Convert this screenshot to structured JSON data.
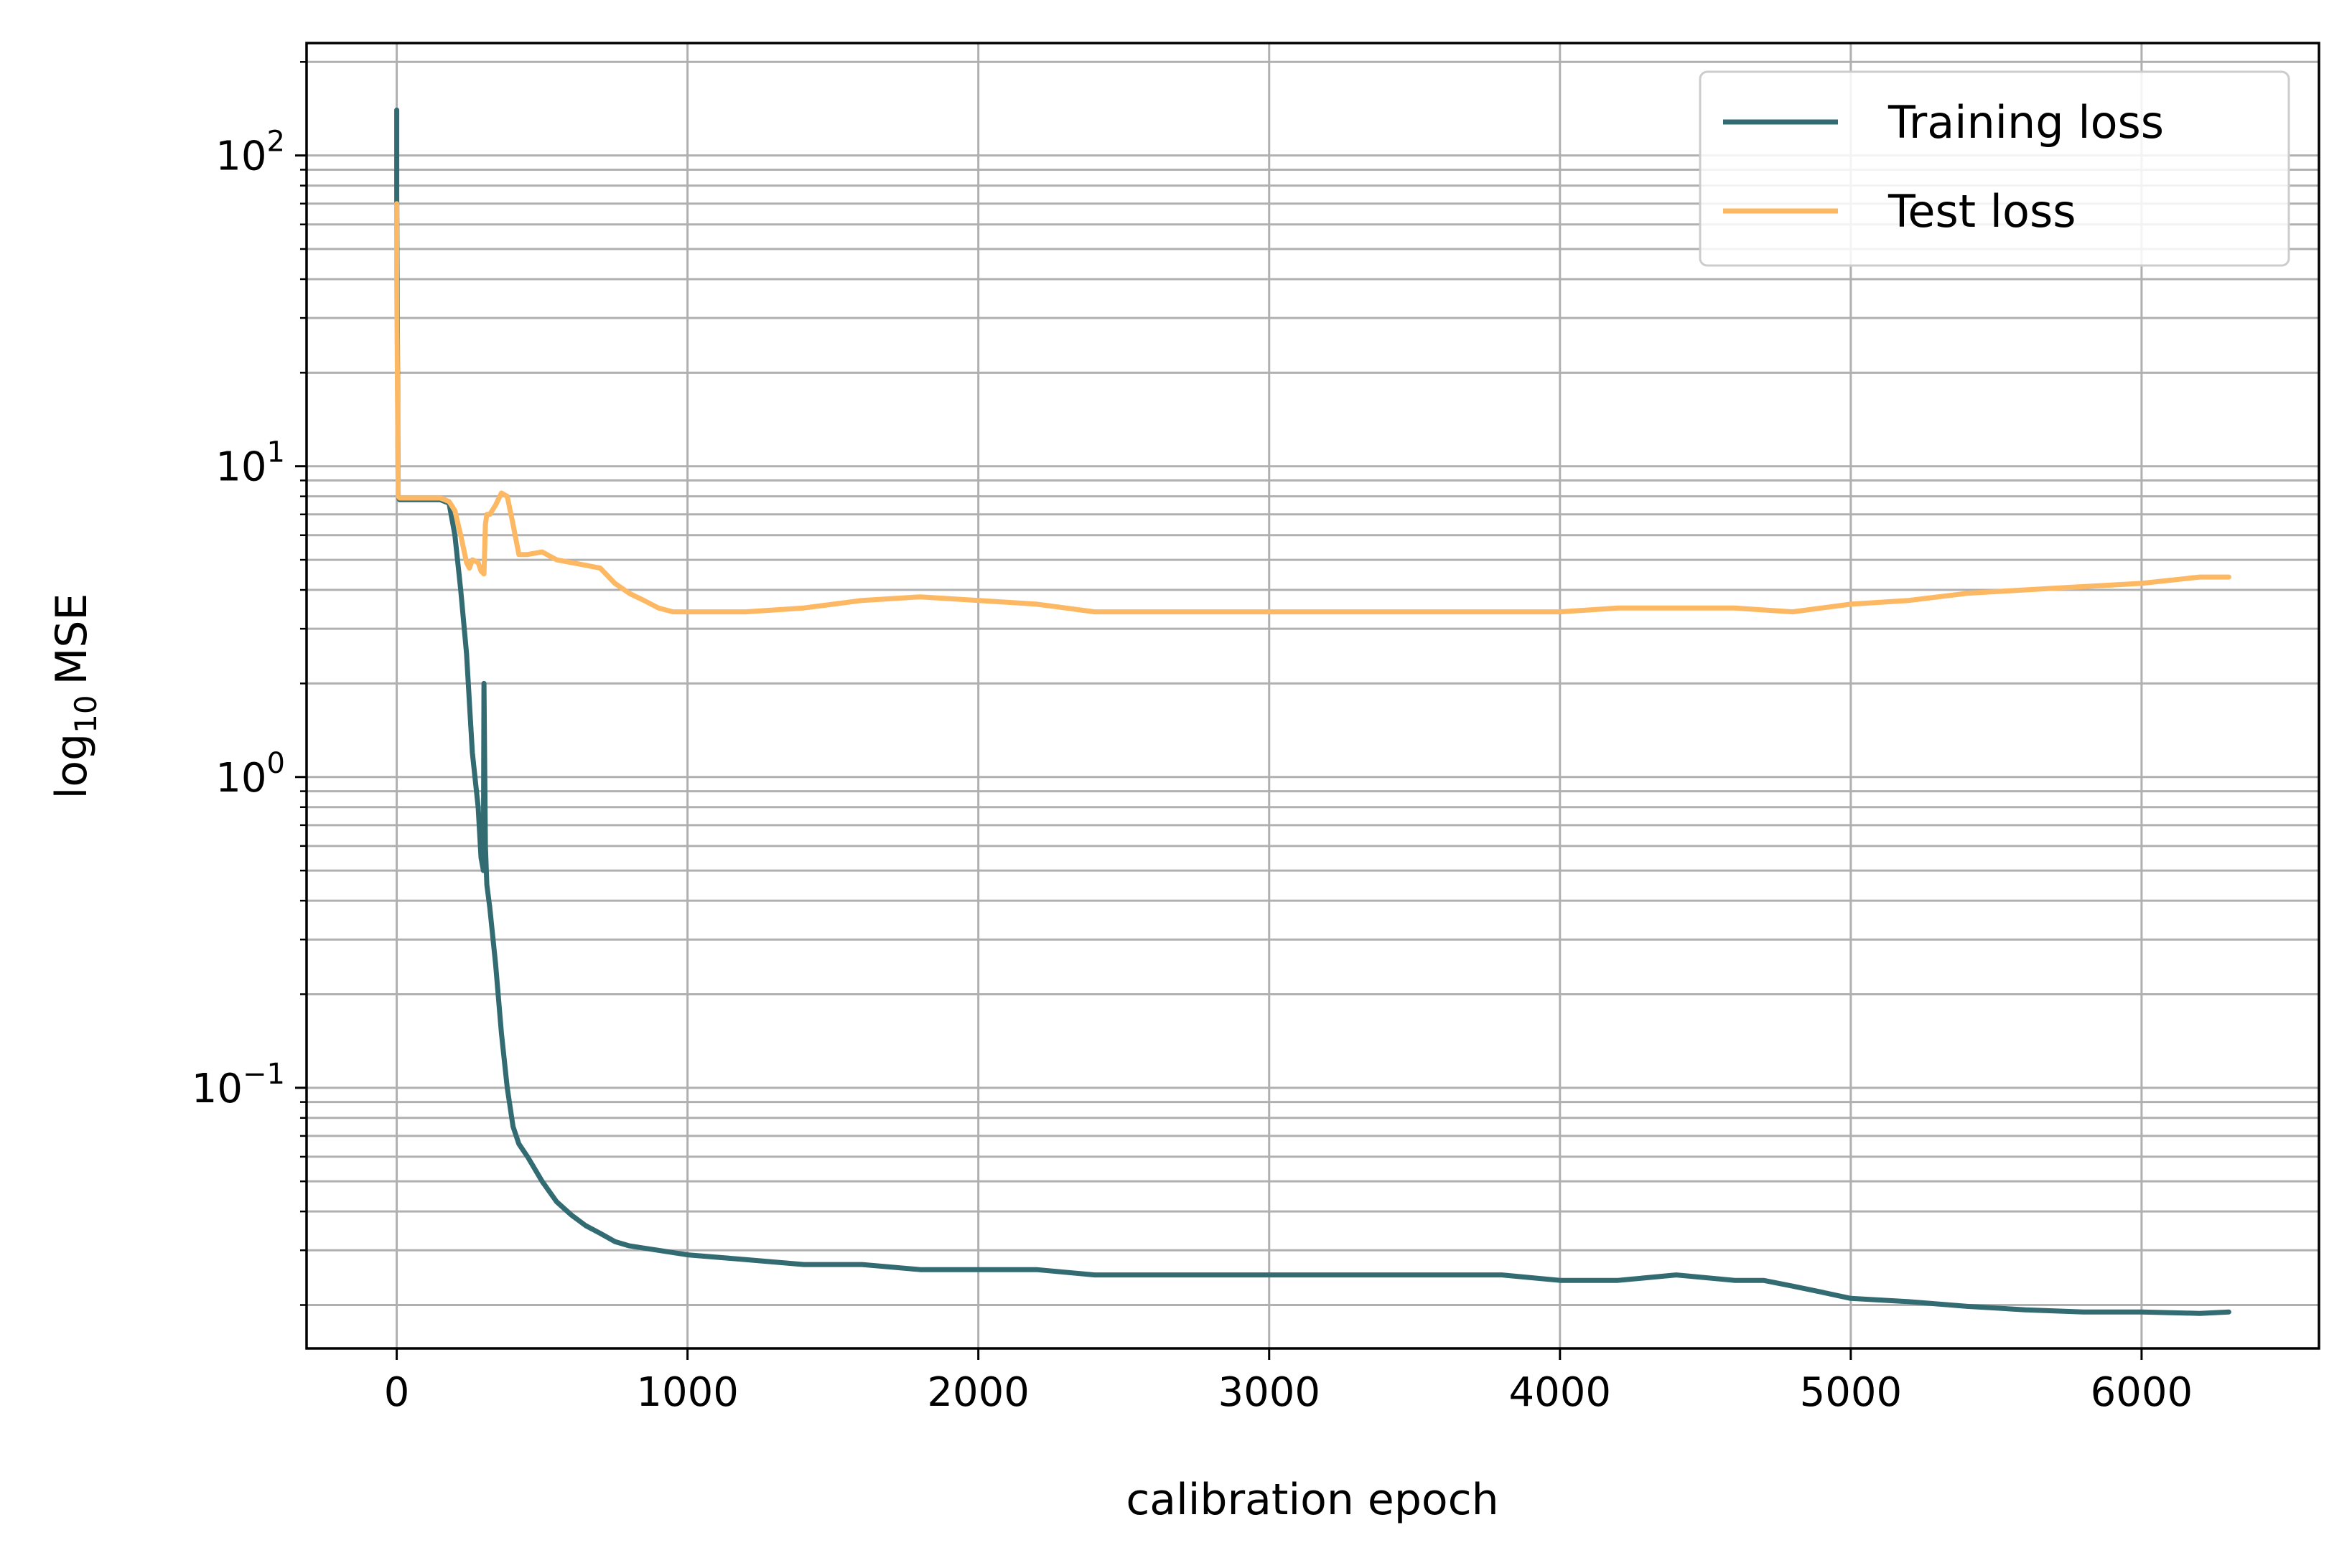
{
  "chart_data": {
    "type": "line",
    "title": "",
    "xlabel": "calibration epoch",
    "ylabel": "MSE",
    "ylabel_prefix": "log",
    "ylabel_subscript": "10",
    "yscale": "log",
    "xlim": [
      -310,
      6610
    ],
    "ylim": [
      0.0145,
      230
    ],
    "xticks": [
      0,
      1000,
      2000,
      3000,
      4000,
      5000,
      6000
    ],
    "xtick_labels": [
      "0",
      "1000",
      "2000",
      "3000",
      "4000",
      "5000",
      "6000"
    ],
    "yticks": [
      0.1,
      1,
      10,
      100
    ],
    "ytick_labels": [
      {
        "base": "10",
        "exp": "−1"
      },
      {
        "base": "10",
        "exp": "0"
      },
      {
        "base": "10",
        "exp": "1"
      },
      {
        "base": "10",
        "exp": "2"
      }
    ],
    "grid": "major and minor",
    "legend": "top-right",
    "series": [
      {
        "name": "Training loss",
        "color": "#336b73",
        "x": [
          0,
          0,
          5,
          10,
          20,
          50,
          100,
          150,
          180,
          200,
          220,
          240,
          260,
          280,
          290,
          298,
          300,
          305,
          310,
          320,
          340,
          360,
          380,
          400,
          420,
          450,
          500,
          550,
          600,
          650,
          700,
          750,
          800,
          900,
          1000,
          1200,
          1400,
          1600,
          1800,
          2000,
          2200,
          2400,
          2600,
          2800,
          3000,
          3200,
          3400,
          3600,
          3800,
          4000,
          4200,
          4400,
          4600,
          4700,
          4800,
          4900,
          5000,
          5200,
          5400,
          5600,
          5800,
          6000,
          6200,
          6300
        ],
        "y": [
          140,
          75,
          8.0,
          7.8,
          7.8,
          7.8,
          7.8,
          7.8,
          7.6,
          6.0,
          4.0,
          2.5,
          1.2,
          0.8,
          0.55,
          0.5,
          2.0,
          0.6,
          0.45,
          0.38,
          0.25,
          0.15,
          0.1,
          0.075,
          0.066,
          0.06,
          0.05,
          0.043,
          0.039,
          0.036,
          0.034,
          0.032,
          0.031,
          0.03,
          0.029,
          0.028,
          0.027,
          0.027,
          0.026,
          0.026,
          0.026,
          0.025,
          0.025,
          0.025,
          0.025,
          0.025,
          0.025,
          0.025,
          0.025,
          0.024,
          0.024,
          0.025,
          0.024,
          0.024,
          0.023,
          0.022,
          0.021,
          0.0205,
          0.0198,
          0.0193,
          0.019,
          0.019,
          0.0188,
          0.019
        ]
      },
      {
        "name": "Test loss",
        "color": "#fdb863",
        "x": [
          0,
          0,
          5,
          10,
          20,
          50,
          100,
          150,
          180,
          200,
          220,
          240,
          250,
          260,
          280,
          290,
          300,
          305,
          310,
          320,
          340,
          360,
          380,
          400,
          420,
          450,
          500,
          550,
          600,
          650,
          700,
          750,
          800,
          850,
          900,
          950,
          1000,
          1200,
          1400,
          1600,
          1800,
          2000,
          2200,
          2300,
          2400,
          2600,
          2800,
          3000,
          3200,
          3400,
          3600,
          3800,
          4000,
          4200,
          4400,
          4600,
          4800,
          4900,
          5000,
          5200,
          5400,
          5600,
          5800,
          6000,
          6200,
          6300
        ],
        "y": [
          70,
          40,
          8.0,
          7.9,
          7.9,
          7.9,
          7.9,
          7.9,
          7.7,
          7.2,
          6.0,
          4.9,
          4.7,
          5.0,
          4.9,
          4.6,
          4.5,
          6.5,
          7.0,
          7.0,
          7.5,
          8.2,
          8.0,
          6.5,
          5.2,
          5.2,
          5.3,
          5.0,
          4.9,
          4.8,
          4.7,
          4.2,
          3.9,
          3.7,
          3.5,
          3.4,
          3.4,
          3.4,
          3.5,
          3.7,
          3.8,
          3.7,
          3.6,
          3.5,
          3.4,
          3.4,
          3.4,
          3.4,
          3.4,
          3.4,
          3.4,
          3.4,
          3.4,
          3.5,
          3.5,
          3.5,
          3.4,
          3.5,
          3.6,
          3.7,
          3.9,
          4.0,
          4.1,
          4.2,
          4.4,
          4.4
        ]
      }
    ]
  }
}
